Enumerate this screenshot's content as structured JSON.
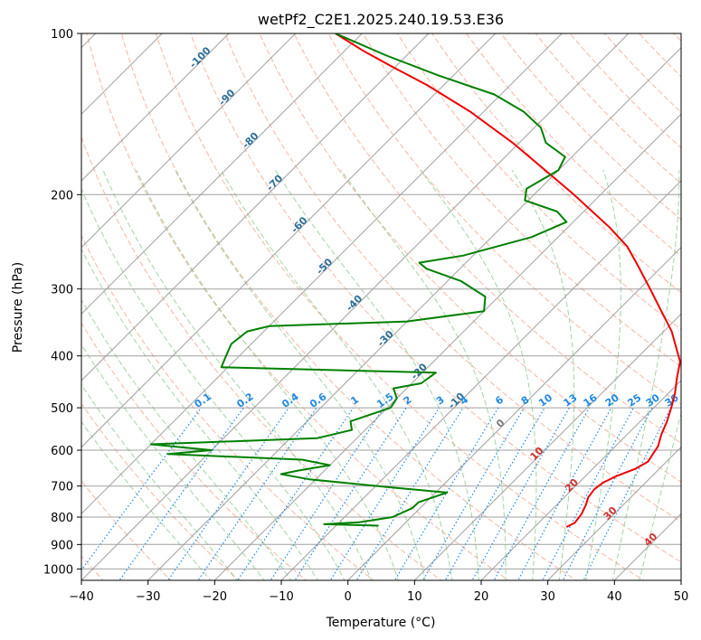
{
  "chart_data": {
    "type": "line",
    "subtype": "skew-T log-P diagram",
    "title": "wetPf2_C2E1.2025.240.19.53.E36",
    "xlabel": "Temperature (°C)",
    "ylabel": "Pressure (hPa)",
    "xlim": [
      -40,
      50
    ],
    "ylim": [
      1050,
      100
    ],
    "y_scale": "log",
    "x_ticks": [
      "−40",
      "−30",
      "−20",
      "−10",
      "0",
      "10",
      "20",
      "30",
      "40",
      "50"
    ],
    "y_ticks": [
      "100",
      "200",
      "300",
      "400",
      "500",
      "600",
      "700",
      "800",
      "900",
      "1000"
    ],
    "grid": true,
    "colors": {
      "temperature": "#ee0000",
      "dewpoint": "#008000",
      "isotherm": "#a0a0a0",
      "dry_adiabat": "#f4a58a",
      "moist_adiabat": "#8ccb8c",
      "mixing_ratio": "#1e88e5",
      "wet_bulb_label": "#2c6e9a",
      "wet_bulb_label_warm": "#d03030"
    },
    "mixing_ratio_labels": [
      "0.1",
      "0.2",
      "0.4",
      "0.6",
      "1",
      "1.5",
      "2",
      "3",
      "4",
      "6",
      "8",
      "10",
      "13",
      "16",
      "20",
      "25",
      "30",
      "36"
    ],
    "mixing_ratio_values": [
      0.1,
      0.2,
      0.4,
      0.6,
      1,
      1.5,
      2,
      3,
      4,
      6,
      8,
      10,
      13,
      16,
      20,
      25,
      30,
      36
    ],
    "isotherm_labels": [
      {
        "text": "-100",
        "t": -100,
        "p": 112
      },
      {
        "text": "-90",
        "t": -90,
        "p": 133
      },
      {
        "text": "-80",
        "t": -80,
        "p": 160
      },
      {
        "text": "-70",
        "t": -70,
        "p": 192
      },
      {
        "text": "-60",
        "t": -60,
        "p": 230
      },
      {
        "text": "-50",
        "t": -50,
        "p": 275
      },
      {
        "text": "-40",
        "t": -40,
        "p": 322
      },
      {
        "text": "-30",
        "t": -30,
        "p": 375
      },
      {
        "text": "-20",
        "t": -20,
        "p": 432
      },
      {
        "text": "-10",
        "t": -10,
        "p": 490
      },
      {
        "text": "0",
        "t": 0,
        "p": 540
      },
      {
        "text": "10",
        "t": 10,
        "p": 615
      },
      {
        "text": "20",
        "t": 20,
        "p": 705
      },
      {
        "text": "30",
        "t": 30,
        "p": 795
      },
      {
        "text": "40",
        "t": 40,
        "p": 890
      }
    ],
    "series": [
      {
        "name": "",
        "role": "temperature",
        "points": [
          {
            "p": 835,
            "t": 24.8
          },
          {
            "p": 820,
            "t": 25.4
          },
          {
            "p": 790,
            "t": 25.1
          },
          {
            "p": 760,
            "t": 24.4
          },
          {
            "p": 735,
            "t": 23.6
          },
          {
            "p": 710,
            "t": 23.3
          },
          {
            "p": 690,
            "t": 23.6
          },
          {
            "p": 670,
            "t": 24.7
          },
          {
            "p": 650,
            "t": 26.4
          },
          {
            "p": 630,
            "t": 27.2
          },
          {
            "p": 610,
            "t": 26.8
          },
          {
            "p": 590,
            "t": 26.4
          },
          {
            "p": 560,
            "t": 25.1
          },
          {
            "p": 530,
            "t": 24.0
          },
          {
            "p": 500,
            "t": 22.6
          },
          {
            "p": 470,
            "t": 21.0
          },
          {
            "p": 440,
            "t": 19.0
          },
          {
            "p": 410,
            "t": 17.0
          },
          {
            "p": 385,
            "t": 14.2
          },
          {
            "p": 360,
            "t": 11.2
          },
          {
            "p": 335,
            "t": 7.4
          },
          {
            "p": 300,
            "t": 1.6
          },
          {
            "p": 270,
            "t": -4.0
          },
          {
            "p": 250,
            "t": -8.2
          },
          {
            "p": 230,
            "t": -13.8
          },
          {
            "p": 200,
            "t": -24.0
          },
          {
            "p": 180,
            "t": -32.0
          },
          {
            "p": 160,
            "t": -41.0
          },
          {
            "p": 140,
            "t": -52.0
          },
          {
            "p": 125,
            "t": -62.4
          },
          {
            "p": 115,
            "t": -70.8
          },
          {
            "p": 108,
            "t": -77.0
          },
          {
            "p": 100,
            "t": -84.0
          }
        ]
      },
      {
        "name": "",
        "role": "dewpoint",
        "points": [
          {
            "p": 830,
            "t": -3.6
          },
          {
            "p": 825,
            "t": -12.0
          },
          {
            "p": 818,
            "t": -7.0
          },
          {
            "p": 800,
            "t": -2.8
          },
          {
            "p": 770,
            "t": -1.2
          },
          {
            "p": 750,
            "t": -1.1
          },
          {
            "p": 720,
            "t": 1.7
          },
          {
            "p": 705,
            "t": -7.0
          },
          {
            "p": 680,
            "t": -21.0
          },
          {
            "p": 665,
            "t": -26.0
          },
          {
            "p": 655,
            "t": -24.0
          },
          {
            "p": 640,
            "t": -20.0
          },
          {
            "p": 625,
            "t": -25.0
          },
          {
            "p": 610,
            "t": -46.0
          },
          {
            "p": 600,
            "t": -40.0
          },
          {
            "p": 585,
            "t": -50.0
          },
          {
            "p": 570,
            "t": -26.0
          },
          {
            "p": 550,
            "t": -22.0
          },
          {
            "p": 530,
            "t": -23.5
          },
          {
            "p": 500,
            "t": -19.5
          },
          {
            "p": 480,
            "t": -20.0
          },
          {
            "p": 460,
            "t": -22.0
          },
          {
            "p": 450,
            "t": -18.6
          },
          {
            "p": 430,
            "t": -18.0
          },
          {
            "p": 420,
            "t": -51.0
          },
          {
            "p": 400,
            "t": -52.0
          },
          {
            "p": 380,
            "t": -53.0
          },
          {
            "p": 360,
            "t": -52.5
          },
          {
            "p": 352,
            "t": -50.0
          },
          {
            "p": 345,
            "t": -30.0
          },
          {
            "p": 330,
            "t": -20.0
          },
          {
            "p": 310,
            "t": -22.0
          },
          {
            "p": 290,
            "t": -28.0
          },
          {
            "p": 275,
            "t": -35.0
          },
          {
            "p": 268,
            "t": -37.0
          },
          {
            "p": 260,
            "t": -31.5
          },
          {
            "p": 240,
            "t": -24.0
          },
          {
            "p": 225,
            "t": -21.0
          },
          {
            "p": 215,
            "t": -24.0
          },
          {
            "p": 205,
            "t": -30.5
          },
          {
            "p": 195,
            "t": -32.0
          },
          {
            "p": 180,
            "t": -30.0
          },
          {
            "p": 170,
            "t": -31.0
          },
          {
            "p": 160,
            "t": -36.0
          },
          {
            "p": 150,
            "t": -39.0
          },
          {
            "p": 140,
            "t": -44.0
          },
          {
            "p": 130,
            "t": -51.0
          },
          {
            "p": 120,
            "t": -62.0
          },
          {
            "p": 110,
            "t": -73.0
          },
          {
            "p": 100,
            "t": -84.0
          }
        ]
      }
    ]
  }
}
